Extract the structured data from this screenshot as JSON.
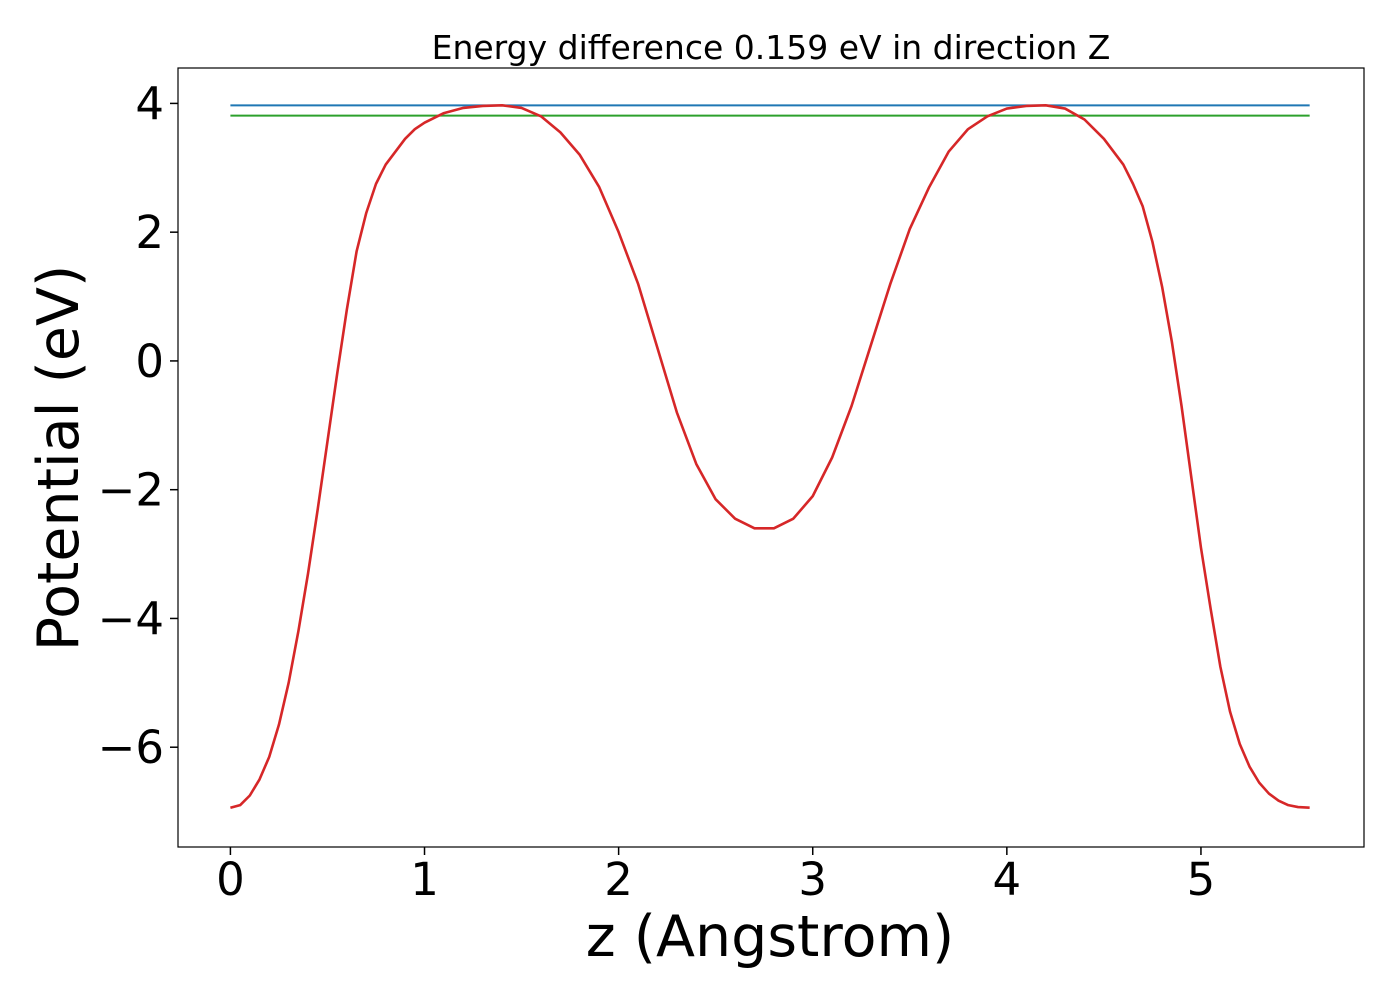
{
  "chart_data": {
    "type": "line",
    "title": "Energy difference 0.159 eV in direction Z",
    "xlabel": "z (Angstrom)",
    "ylabel": "Potential (eV)",
    "xlim": [
      -0.27,
      5.84
    ],
    "ylim": [
      -7.55,
      4.55
    ],
    "xticks": [
      {
        "value": 0,
        "label": "0"
      },
      {
        "value": 1,
        "label": "1"
      },
      {
        "value": 2,
        "label": "2"
      },
      {
        "value": 3,
        "label": "3"
      },
      {
        "value": 4,
        "label": "4"
      },
      {
        "value": 5,
        "label": "5"
      }
    ],
    "yticks": [
      {
        "value": 4,
        "label": "4"
      },
      {
        "value": 2,
        "label": "2"
      },
      {
        "value": 0,
        "label": "0"
      },
      {
        "value": -2,
        "label": "−2"
      },
      {
        "value": -4,
        "label": "−4"
      },
      {
        "value": -6,
        "label": "−6"
      }
    ],
    "grid": false,
    "legend": "none",
    "series": [
      {
        "color": "#1f77b4",
        "x": [
          0,
          5.56
        ],
        "y": [
          3.97,
          3.97
        ]
      },
      {
        "color": "#2ca02c",
        "x": [
          0,
          5.56
        ],
        "y": [
          3.81,
          3.81
        ]
      },
      {
        "color": "#d62728",
        "x": [
          0,
          0.05,
          0.1,
          0.15,
          0.2,
          0.25,
          0.3,
          0.35,
          0.4,
          0.45,
          0.5,
          0.55,
          0.6,
          0.65,
          0.7,
          0.75,
          0.8,
          0.85,
          0.9,
          0.95,
          1.0,
          1.1,
          1.2,
          1.3,
          1.4,
          1.5,
          1.6,
          1.7,
          1.8,
          1.9,
          2.0,
          2.1,
          2.2,
          2.3,
          2.4,
          2.5,
          2.6,
          2.7,
          2.8,
          2.9,
          3.0,
          3.1,
          3.2,
          3.3,
          3.4,
          3.5,
          3.6,
          3.7,
          3.8,
          3.9,
          4.0,
          4.1,
          4.2,
          4.3,
          4.4,
          4.5,
          4.6,
          4.65,
          4.7,
          4.75,
          4.8,
          4.85,
          4.9,
          4.95,
          5.0,
          5.05,
          5.1,
          5.15,
          5.2,
          5.25,
          5.3,
          5.35,
          5.4,
          5.45,
          5.5,
          5.56
        ],
        "y": [
          -6.94,
          -6.9,
          -6.75,
          -6.5,
          -6.15,
          -5.65,
          -5.0,
          -4.2,
          -3.3,
          -2.3,
          -1.25,
          -0.2,
          0.8,
          1.7,
          2.3,
          2.75,
          3.05,
          3.25,
          3.45,
          3.6,
          3.7,
          3.85,
          3.93,
          3.96,
          3.97,
          3.93,
          3.8,
          3.55,
          3.2,
          2.7,
          2.0,
          1.2,
          0.2,
          -0.8,
          -1.6,
          -2.15,
          -2.45,
          -2.6,
          -2.6,
          -2.45,
          -2.1,
          -1.5,
          -0.7,
          0.25,
          1.2,
          2.05,
          2.7,
          3.25,
          3.6,
          3.8,
          3.92,
          3.96,
          3.97,
          3.92,
          3.75,
          3.45,
          3.05,
          2.75,
          2.4,
          1.85,
          1.15,
          0.3,
          -0.7,
          -1.8,
          -2.9,
          -3.85,
          -4.75,
          -5.45,
          -5.95,
          -6.3,
          -6.55,
          -6.72,
          -6.83,
          -6.9,
          -6.93,
          -6.94
        ]
      }
    ]
  }
}
